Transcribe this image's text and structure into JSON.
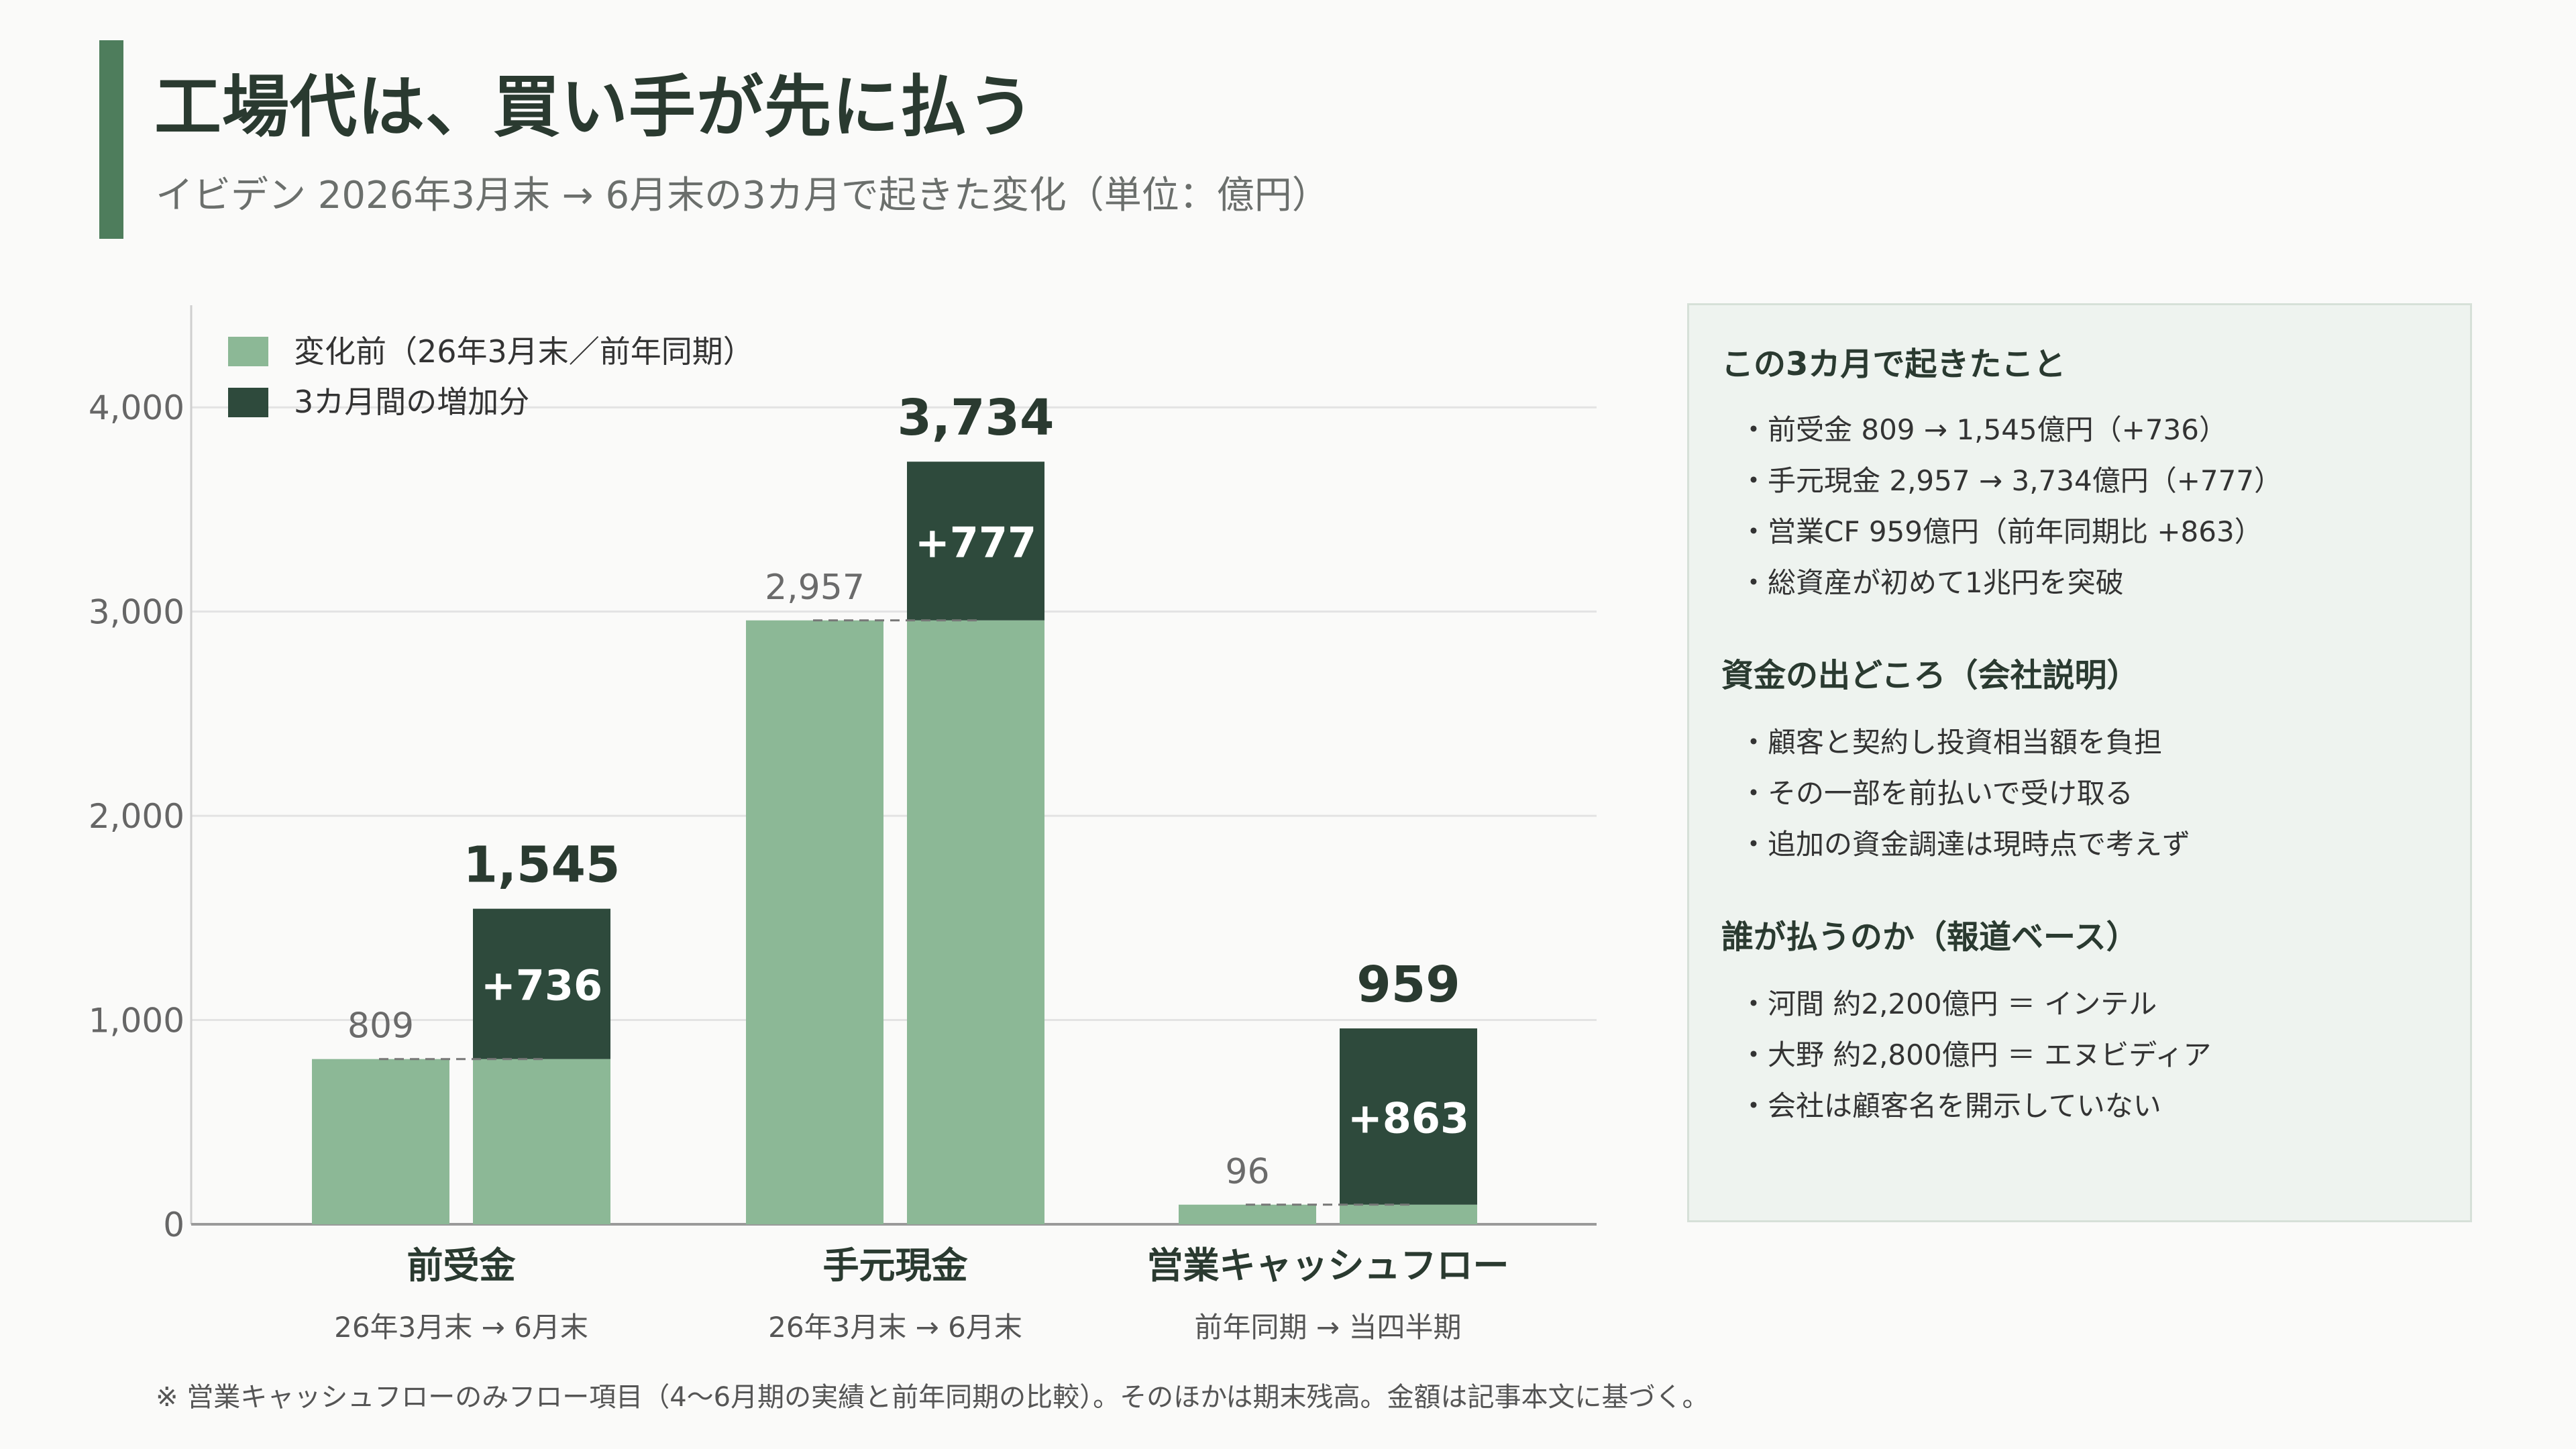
{
  "header": {
    "title": "工場代は、買い手が先に払う",
    "subtitle": "イビデン 2026年3月末 → 6月末の3カ月で起きた変化（単位：億円）"
  },
  "colors": {
    "accent": "#4e7d5c",
    "before": "#8cb896",
    "increase": "#2e4a3c",
    "panel_bg": "#eef3ef"
  },
  "chart_data": {
    "type": "bar",
    "ylim": [
      0,
      4000
    ],
    "yticks": [
      0,
      1000,
      2000,
      3000,
      4000
    ],
    "ytick_labels": [
      "0",
      "1,000",
      "2,000",
      "3,000",
      "4,000"
    ],
    "grid": true,
    "legend_position": "top-left",
    "legend": [
      {
        "label": "変化前（26年3月末／前年同期）",
        "color": "#8cb896"
      },
      {
        "label": "3カ月間の増加分",
        "color": "#2e4a3c"
      }
    ],
    "categories": [
      {
        "name": "前受金",
        "sub": "26年3月末 → 6月末",
        "before": 809,
        "before_label": "809",
        "after": 1545,
        "after_label": "1,545",
        "increase": 736,
        "increase_label": "+736"
      },
      {
        "name": "手元現金",
        "sub": "26年3月末 → 6月末",
        "before": 2957,
        "before_label": "2,957",
        "after": 3734,
        "after_label": "3,734",
        "increase": 777,
        "increase_label": "+777"
      },
      {
        "name": "営業キャッシュフロー",
        "sub": "前年同期 → 当四半期",
        "before": 96,
        "before_label": "96",
        "after": 959,
        "after_label": "959",
        "increase": 863,
        "increase_label": "+863"
      }
    ]
  },
  "panel": {
    "sections": [
      {
        "title": "この3カ月で起きたこと",
        "items": [
          "・前受金 809 → 1,545億円（+736）",
          "・手元現金 2,957 → 3,734億円（+777）",
          "・営業CF 959億円（前年同期比 +863）",
          "・総資産が初めて1兆円を突破"
        ]
      },
      {
        "title": "資金の出どころ（会社説明）",
        "items": [
          "・顧客と契約し投資相当額を負担",
          "・その一部を前払いで受け取る",
          "・追加の資金調達は現時点で考えず"
        ]
      },
      {
        "title": "誰が払うのか（報道ベース）",
        "items": [
          "・河間 約2,200億円 ＝ インテル",
          "・大野 約2,800億円 ＝ エヌビディア",
          "・会社は顧客名を開示していない"
        ]
      }
    ]
  },
  "footnote": "※ 営業キャッシュフローのみフロー項目（4〜6月期の実績と前年同期の比較）。そのほかは期末残高。金額は記事本文に基づく。"
}
